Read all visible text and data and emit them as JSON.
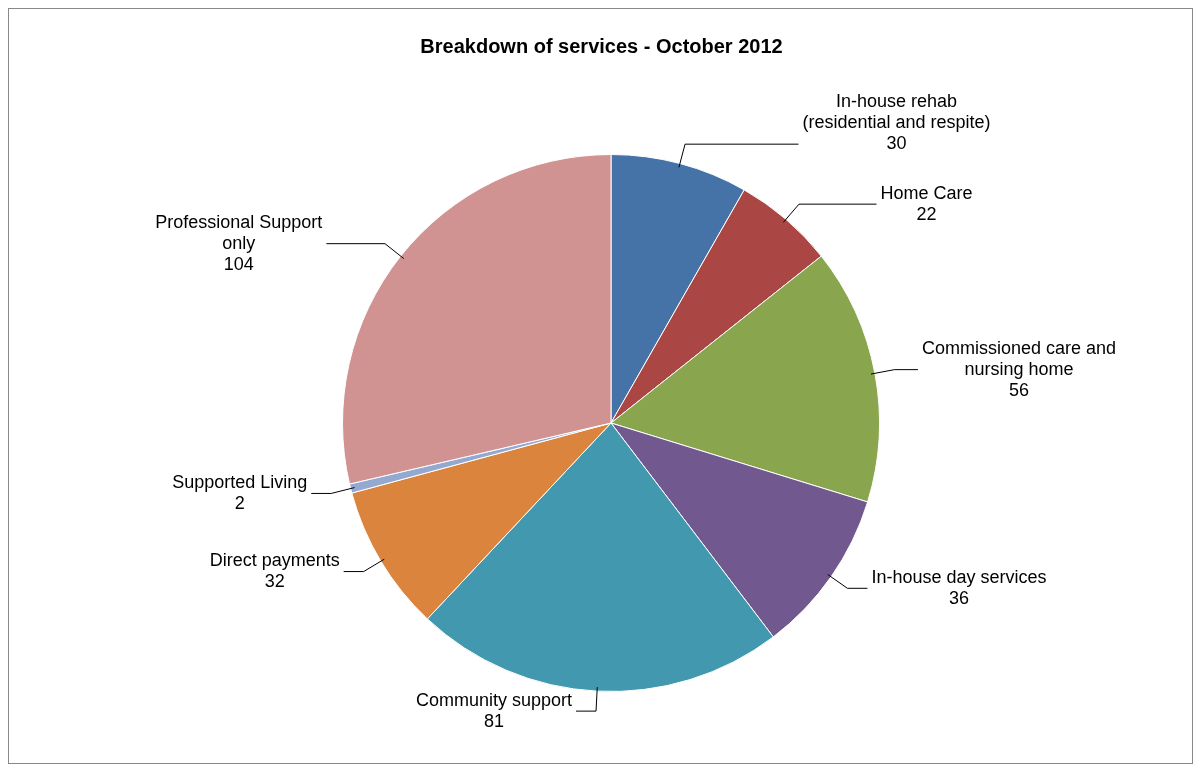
{
  "chart_data": {
    "type": "pie",
    "title": "Breakdown of services - October 2012",
    "categories": [
      "In-house rehab (residential and respite)",
      "Home Care",
      "Commissioned care and nursing home",
      "In-house day services",
      "Community support",
      "Direct payments",
      "Supported Living",
      "Professional Support only"
    ],
    "values": [
      30,
      22,
      56,
      36,
      81,
      32,
      2,
      104
    ],
    "colors": [
      "#4572a7",
      "#aa4643",
      "#89a54e",
      "#71588f",
      "#4198af",
      "#db843d",
      "#93a9cf",
      "#d19392"
    ],
    "data_labels": true,
    "legend": false
  }
}
